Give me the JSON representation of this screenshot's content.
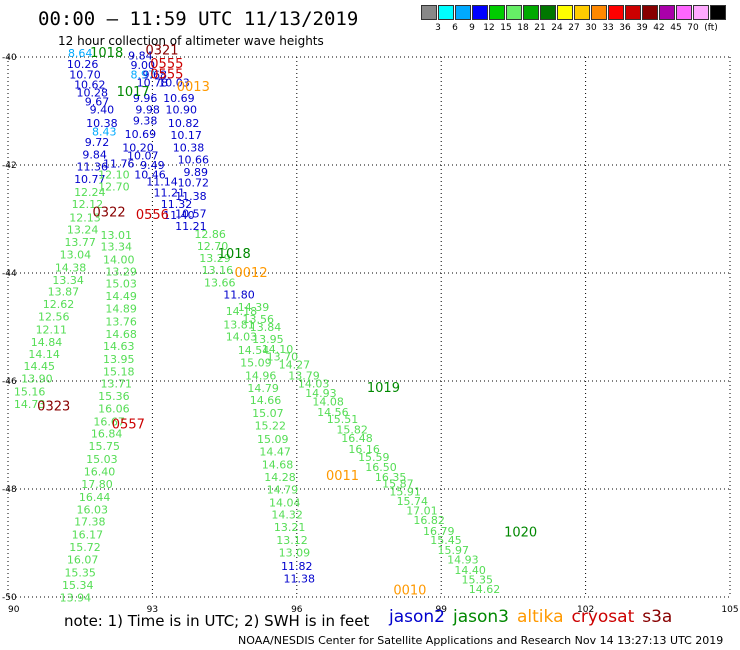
{
  "header": {
    "title": "00:00 – 11:59 UTC 11/13/2019",
    "subtitle": "12 hour collection of altimeter wave heights"
  },
  "scale": {
    "unit_label": "(ft)",
    "colors": [
      "#888888",
      "#00ffff",
      "#00aaff",
      "#0000ff",
      "#00cc00",
      "#66ee66",
      "#00aa00",
      "#007700",
      "#ffff00",
      "#ffcc00",
      "#ff8800",
      "#ff0000",
      "#cc0000",
      "#880000",
      "#aa00aa",
      "#ff66ff",
      "#ffaaff",
      "#000000"
    ],
    "labels": [
      "3",
      "6",
      "9",
      "12",
      "15",
      "18",
      "21",
      "24",
      "27",
      "30",
      "33",
      "36",
      "39",
      "42",
      "45",
      "70"
    ]
  },
  "axes": {
    "x_ticks": [
      "90",
      "93",
      "96",
      "99",
      "102",
      "105"
    ],
    "y_ticks": [
      "-40",
      "-42",
      "-44",
      "-46",
      "-48",
      "-50"
    ]
  },
  "footer": {
    "note": "note: 1) Time is in UTC; 2) SWH is in feet",
    "credit": "NOAA/NESDIS Center for Satellite Applications and Research   Nov 14 13:27:13 UTC 2019",
    "satellites": [
      {
        "name": "jason2",
        "color": "#0000cc"
      },
      {
        "name": "jason3",
        "color": "#008800"
      },
      {
        "name": "altika",
        "color": "#ff9900"
      },
      {
        "name": "cryosat",
        "color": "#cc0000"
      },
      {
        "name": "s3a",
        "color": "#880000"
      }
    ]
  },
  "time_labels": [
    {
      "text": "0321",
      "color": "#880000",
      "lon": 93.2,
      "lat": -39.95
    },
    {
      "text": "0555",
      "color": "#cc0000",
      "lon": 93.3,
      "lat": -40.2
    },
    {
      "text": "0555",
      "color": "#cc0000",
      "lon": 93.3,
      "lat": -40.4
    },
    {
      "text": "0013",
      "color": "#ff9900",
      "lon": 93.85,
      "lat": -40.63
    },
    {
      "text": "1018",
      "color": "#008800",
      "lon": 92.05,
      "lat": -40.0
    },
    {
      "text": "1017",
      "color": "#008800",
      "lon": 92.6,
      "lat": -40.72
    },
    {
      "text": "0322",
      "color": "#880000",
      "lon": 92.1,
      "lat": -42.95
    },
    {
      "text": "0556",
      "color": "#cc0000",
      "lon": 93.0,
      "lat": -43.0
    },
    {
      "text": "1018",
      "color": "#008800",
      "lon": 94.7,
      "lat": -43.72
    },
    {
      "text": "0012",
      "color": "#ff9900",
      "lon": 95.05,
      "lat": -44.07
    },
    {
      "text": "0323",
      "color": "#880000",
      "lon": 90.95,
      "lat": -46.55
    },
    {
      "text": "0557",
      "color": "#cc0000",
      "lon": 92.5,
      "lat": -46.88
    },
    {
      "text": "1019",
      "color": "#008800",
      "lon": 97.8,
      "lat": -46.2
    },
    {
      "text": "0011",
      "color": "#ff9900",
      "lon": 96.95,
      "lat": -47.83
    },
    {
      "text": "1020",
      "color": "#008800",
      "lon": 100.65,
      "lat": -48.88
    },
    {
      "text": "0010",
      "color": "#ff9900",
      "lon": 98.35,
      "lat": -49.95
    }
  ],
  "values": [
    {
      "text": "8.64",
      "color": "#00aaff",
      "lon": 91.5,
      "lat": -40.0
    },
    {
      "text": "10.26",
      "color": "#0000cc",
      "lon": 91.55,
      "lat": -40.2
    },
    {
      "text": "10.70",
      "color": "#0000cc",
      "lon": 91.6,
      "lat": -40.4
    },
    {
      "text": "10.62",
      "color": "#0000cc",
      "lon": 91.7,
      "lat": -40.58
    },
    {
      "text": "10.28",
      "color": "#0000cc",
      "lon": 91.75,
      "lat": -40.73
    },
    {
      "text": "9.67",
      "color": "#0000cc",
      "lon": 91.85,
      "lat": -40.9
    },
    {
      "text": "9.40",
      "color": "#0000cc",
      "lon": 91.95,
      "lat": -41.05
    },
    {
      "text": "10.38",
      "color": "#0000cc",
      "lon": 91.95,
      "lat": -41.3
    },
    {
      "text": "8.43",
      "color": "#00aaff",
      "lon": 92.0,
      "lat": -41.45
    },
    {
      "text": "9.72",
      "color": "#0000cc",
      "lon": 91.85,
      "lat": -41.65
    },
    {
      "text": "9.84",
      "color": "#0000cc",
      "lon": 91.8,
      "lat": -41.88
    },
    {
      "text": "11.36",
      "color": "#0000cc",
      "lon": 91.75,
      "lat": -42.1
    },
    {
      "text": "10.77",
      "color": "#0000cc",
      "lon": 91.7,
      "lat": -42.33
    },
    {
      "text": "12.24",
      "color": "#55dd55",
      "lon": 91.7,
      "lat": -42.57
    },
    {
      "text": "12.12",
      "color": "#55dd55",
      "lon": 91.65,
      "lat": -42.8
    },
    {
      "text": "12.13",
      "color": "#55dd55",
      "lon": 91.6,
      "lat": -43.05
    },
    {
      "text": "13.24",
      "color": "#55dd55",
      "lon": 91.55,
      "lat": -43.27
    },
    {
      "text": "13.77",
      "color": "#55dd55",
      "lon": 91.5,
      "lat": -43.5
    },
    {
      "text": "13.04",
      "color": "#55dd55",
      "lon": 91.4,
      "lat": -43.73
    },
    {
      "text": "14.38",
      "color": "#55dd55",
      "lon": 91.3,
      "lat": -43.97
    },
    {
      "text": "13.34",
      "color": "#55dd55",
      "lon": 91.25,
      "lat": -44.2
    },
    {
      "text": "13.87",
      "color": "#55dd55",
      "lon": 91.15,
      "lat": -44.42
    },
    {
      "text": "12.62",
      "color": "#55dd55",
      "lon": 91.05,
      "lat": -44.65
    },
    {
      "text": "12.56",
      "color": "#55dd55",
      "lon": 90.95,
      "lat": -44.88
    },
    {
      "text": "12.11",
      "color": "#55dd55",
      "lon": 90.9,
      "lat": -45.12
    },
    {
      "text": "14.84",
      "color": "#55dd55",
      "lon": 90.8,
      "lat": -45.35
    },
    {
      "text": "14.14",
      "color": "#55dd55",
      "lon": 90.75,
      "lat": -45.57
    },
    {
      "text": "14.45",
      "color": "#55dd55",
      "lon": 90.65,
      "lat": -45.8
    },
    {
      "text": "13.90",
      "color": "#55dd55",
      "lon": 90.6,
      "lat": -46.03
    },
    {
      "text": "15.16",
      "color": "#55dd55",
      "lon": 90.45,
      "lat": -46.27
    },
    {
      "text": "14.73",
      "color": "#55dd55",
      "lon": 90.45,
      "lat": -46.5
    },
    {
      "text": "9.84",
      "color": "#0000cc",
      "lon": 92.75,
      "lat": -40.05
    },
    {
      "text": "9.00",
      "color": "#0000cc",
      "lon": 92.8,
      "lat": -40.22
    },
    {
      "text": "8.97",
      "color": "#00aaff",
      "lon": 92.8,
      "lat": -40.4
    },
    {
      "text": "9.68",
      "color": "#0000cc",
      "lon": 93.05,
      "lat": -40.4
    },
    {
      "text": "10.78",
      "color": "#0000cc",
      "lon": 93.0,
      "lat": -40.55
    },
    {
      "text": "10.03",
      "color": "#0000cc",
      "lon": 93.45,
      "lat": -40.55
    },
    {
      "text": "9.96",
      "color": "#0000cc",
      "lon": 92.85,
      "lat": -40.83
    },
    {
      "text": "10.69",
      "color": "#0000cc",
      "lon": 93.55,
      "lat": -40.83
    },
    {
      "text": "9.98",
      "color": "#0000cc",
      "lon": 92.9,
      "lat": -41.05
    },
    {
      "text": "10.90",
      "color": "#0000cc",
      "lon": 93.6,
      "lat": -41.05
    },
    {
      "text": "9.38",
      "color": "#0000cc",
      "lon": 92.85,
      "lat": -41.25
    },
    {
      "text": "10.82",
      "color": "#0000cc",
      "lon": 93.65,
      "lat": -41.3
    },
    {
      "text": "10.69",
      "color": "#0000cc",
      "lon": 92.75,
      "lat": -41.5
    },
    {
      "text": "10.17",
      "color": "#0000cc",
      "lon": 93.7,
      "lat": -41.52
    },
    {
      "text": "10.20",
      "color": "#0000cc",
      "lon": 92.7,
      "lat": -41.75
    },
    {
      "text": "10.38",
      "color": "#0000cc",
      "lon": 93.75,
      "lat": -41.75
    },
    {
      "text": "10.07",
      "color": "#0000cc",
      "lon": 92.8,
      "lat": -41.9
    },
    {
      "text": "10.66",
      "color": "#0000cc",
      "lon": 93.85,
      "lat": -41.97
    },
    {
      "text": "11.76",
      "color": "#0000cc",
      "lon": 92.3,
      "lat": -42.05
    },
    {
      "text": "9.49",
      "color": "#0000cc",
      "lon": 93.0,
      "lat": -42.07
    },
    {
      "text": "9.89",
      "color": "#0000cc",
      "lon": 93.9,
      "lat": -42.2
    },
    {
      "text": "12.10",
      "color": "#55dd55",
      "lon": 92.2,
      "lat": -42.25
    },
    {
      "text": "10.46",
      "color": "#0000cc",
      "lon": 92.95,
      "lat": -42.25
    },
    {
      "text": "10.72",
      "color": "#0000cc",
      "lon": 93.85,
      "lat": -42.4
    },
    {
      "text": "12.70",
      "color": "#55dd55",
      "lon": 92.2,
      "lat": -42.47
    },
    {
      "text": "11.14",
      "color": "#0000cc",
      "lon": 93.2,
      "lat": -42.38
    },
    {
      "text": "11.21",
      "color": "#0000cc",
      "lon": 93.35,
      "lat": -42.58
    },
    {
      "text": "11.38",
      "color": "#0000cc",
      "lon": 93.8,
      "lat": -42.65
    },
    {
      "text": "11.32",
      "color": "#0000cc",
      "lon": 93.5,
      "lat": -42.8
    },
    {
      "text": "11.40",
      "color": "#0000cc",
      "lon": 93.55,
      "lat": -43.0
    },
    {
      "text": "10.57",
      "color": "#0000cc",
      "lon": 93.8,
      "lat": -42.97
    },
    {
      "text": "11.21",
      "color": "#0000cc",
      "lon": 93.8,
      "lat": -43.2
    },
    {
      "text": "13.01",
      "color": "#55dd55",
      "lon": 92.25,
      "lat": -43.37
    },
    {
      "text": "13.34",
      "color": "#55dd55",
      "lon": 92.25,
      "lat": -43.58
    },
    {
      "text": "14.00",
      "color": "#55dd55",
      "lon": 92.3,
      "lat": -43.82
    },
    {
      "text": "13.29",
      "color": "#55dd55",
      "lon": 92.35,
      "lat": -44.05
    },
    {
      "text": "15.03",
      "color": "#55dd55",
      "lon": 92.35,
      "lat": -44.27
    },
    {
      "text": "14.49",
      "color": "#55dd55",
      "lon": 92.35,
      "lat": -44.5
    },
    {
      "text": "14.89",
      "color": "#55dd55",
      "lon": 92.35,
      "lat": -44.73
    },
    {
      "text": "13.76",
      "color": "#55dd55",
      "lon": 92.35,
      "lat": -44.97
    },
    {
      "text": "14.68",
      "color": "#55dd55",
      "lon": 92.35,
      "lat": -45.2
    },
    {
      "text": "14.63",
      "color": "#55dd55",
      "lon": 92.3,
      "lat": -45.43
    },
    {
      "text": "13.95",
      "color": "#55dd55",
      "lon": 92.3,
      "lat": -45.67
    },
    {
      "text": "15.18",
      "color": "#55dd55",
      "lon": 92.3,
      "lat": -45.9
    },
    {
      "text": "13.71",
      "color": "#55dd55",
      "lon": 92.25,
      "lat": -46.12
    },
    {
      "text": "15.36",
      "color": "#55dd55",
      "lon": 92.2,
      "lat": -46.35
    },
    {
      "text": "16.06",
      "color": "#55dd55",
      "lon": 92.2,
      "lat": -46.58
    },
    {
      "text": "16.67",
      "color": "#55dd55",
      "lon": 92.1,
      "lat": -46.82
    },
    {
      "text": "16.84",
      "color": "#55dd55",
      "lon": 92.05,
      "lat": -47.05
    },
    {
      "text": "15.75",
      "color": "#55dd55",
      "lon": 92.0,
      "lat": -47.28
    },
    {
      "text": "15.03",
      "color": "#55dd55",
      "lon": 91.95,
      "lat": -47.52
    },
    {
      "text": "16.40",
      "color": "#55dd55",
      "lon": 91.9,
      "lat": -47.75
    },
    {
      "text": "17.80",
      "color": "#55dd55",
      "lon": 91.85,
      "lat": -47.98
    },
    {
      "text": "16.44",
      "color": "#55dd55",
      "lon": 91.8,
      "lat": -48.22
    },
    {
      "text": "16.03",
      "color": "#55dd55",
      "lon": 91.75,
      "lat": -48.45
    },
    {
      "text": "17.38",
      "color": "#55dd55",
      "lon": 91.7,
      "lat": -48.68
    },
    {
      "text": "16.17",
      "color": "#55dd55",
      "lon": 91.65,
      "lat": -48.92
    },
    {
      "text": "15.72",
      "color": "#55dd55",
      "lon": 91.6,
      "lat": -49.15
    },
    {
      "text": "16.07",
      "color": "#55dd55",
      "lon": 91.55,
      "lat": -49.38
    },
    {
      "text": "15.35",
      "color": "#55dd55",
      "lon": 91.5,
      "lat": -49.62
    },
    {
      "text": "15.34",
      "color": "#55dd55",
      "lon": 91.45,
      "lat": -49.85
    },
    {
      "text": "13.94",
      "color": "#55dd55",
      "lon": 91.4,
      "lat": -50.08
    },
    {
      "text": "12.86",
      "color": "#55dd55",
      "lon": 94.2,
      "lat": -43.35
    },
    {
      "text": "12.70",
      "color": "#55dd55",
      "lon": 94.25,
      "lat": -43.57
    },
    {
      "text": "13.29",
      "color": "#55dd55",
      "lon": 94.3,
      "lat": -43.8
    },
    {
      "text": "13.16",
      "color": "#55dd55",
      "lon": 94.35,
      "lat": -44.02
    },
    {
      "text": "13.66",
      "color": "#55dd55",
      "lon": 94.4,
      "lat": -44.25
    },
    {
      "text": "11.80",
      "color": "#0000cc",
      "lon": 94.8,
      "lat": -44.47
    },
    {
      "text": "14.39",
      "color": "#55dd55",
      "lon": 95.1,
      "lat": -44.7
    },
    {
      "text": "14.18",
      "color": "#55dd55",
      "lon": 94.85,
      "lat": -44.78
    },
    {
      "text": "13.56",
      "color": "#55dd55",
      "lon": 95.2,
      "lat": -44.93
    },
    {
      "text": "13.81",
      "color": "#55dd55",
      "lon": 94.8,
      "lat": -45.03
    },
    {
      "text": "13.84",
      "color": "#55dd55",
      "lon": 95.35,
      "lat": -45.07
    },
    {
      "text": "14.03",
      "color": "#55dd55",
      "lon": 94.85,
      "lat": -45.25
    },
    {
      "text": "13.95",
      "color": "#55dd55",
      "lon": 95.4,
      "lat": -45.3
    },
    {
      "text": "14.10",
      "color": "#55dd55",
      "lon": 95.6,
      "lat": -45.48
    },
    {
      "text": "14.54",
      "color": "#55dd55",
      "lon": 95.1,
      "lat": -45.5
    },
    {
      "text": "13.70",
      "color": "#55dd55",
      "lon": 95.7,
      "lat": -45.62
    },
    {
      "text": "15.09",
      "color": "#55dd55",
      "lon": 95.15,
      "lat": -45.73
    },
    {
      "text": "14.27",
      "color": "#55dd55",
      "lon": 95.95,
      "lat": -45.77
    },
    {
      "text": "13.79",
      "color": "#55dd55",
      "lon": 96.15,
      "lat": -45.97
    },
    {
      "text": "14.96",
      "color": "#55dd55",
      "lon": 95.25,
      "lat": -45.97
    },
    {
      "text": "14.03",
      "color": "#55dd55",
      "lon": 96.35,
      "lat": -46.12
    },
    {
      "text": "14.79",
      "color": "#55dd55",
      "lon": 95.3,
      "lat": -46.2
    },
    {
      "text": "14.93",
      "color": "#55dd55",
      "lon": 96.5,
      "lat": -46.3
    },
    {
      "text": "14.66",
      "color": "#55dd55",
      "lon": 95.35,
      "lat": -46.43
    },
    {
      "text": "14.08",
      "color": "#55dd55",
      "lon": 96.65,
      "lat": -46.45
    },
    {
      "text": "14.56",
      "color": "#55dd55",
      "lon": 96.75,
      "lat": -46.65
    },
    {
      "text": "15.07",
      "color": "#55dd55",
      "lon": 95.4,
      "lat": -46.67
    },
    {
      "text": "15.51",
      "color": "#55dd55",
      "lon": 96.95,
      "lat": -46.78
    },
    {
      "text": "15.22",
      "color": "#55dd55",
      "lon": 95.45,
      "lat": -46.9
    },
    {
      "text": "15.82",
      "color": "#55dd55",
      "lon": 97.15,
      "lat": -46.97
    },
    {
      "text": "15.09",
      "color": "#55dd55",
      "lon": 95.5,
      "lat": -47.15
    },
    {
      "text": "16.48",
      "color": "#55dd55",
      "lon": 97.25,
      "lat": -47.13
    },
    {
      "text": "16.16",
      "color": "#55dd55",
      "lon": 97.4,
      "lat": -47.33
    },
    {
      "text": "14.47",
      "color": "#55dd55",
      "lon": 95.55,
      "lat": -47.38
    },
    {
      "text": "15.59",
      "color": "#55dd55",
      "lon": 97.6,
      "lat": -47.48
    },
    {
      "text": "14.68",
      "color": "#55dd55",
      "lon": 95.6,
      "lat": -47.62
    },
    {
      "text": "16.50",
      "color": "#55dd55",
      "lon": 97.75,
      "lat": -47.67
    },
    {
      "text": "16.35",
      "color": "#55dd55",
      "lon": 97.95,
      "lat": -47.85
    },
    {
      "text": "14.28",
      "color": "#55dd55",
      "lon": 95.65,
      "lat": -47.85
    },
    {
      "text": "15.87",
      "color": "#55dd55",
      "lon": 98.1,
      "lat": -47.97
    },
    {
      "text": "15.91",
      "color": "#55dd55",
      "lon": 98.25,
      "lat": -48.12
    },
    {
      "text": "14.79",
      "color": "#55dd55",
      "lon": 95.7,
      "lat": -48.08
    },
    {
      "text": "15.74",
      "color": "#55dd55",
      "lon": 98.4,
      "lat": -48.3
    },
    {
      "text": "14.04",
      "color": "#55dd55",
      "lon": 95.75,
      "lat": -48.32
    },
    {
      "text": "17.01",
      "color": "#55dd55",
      "lon": 98.6,
      "lat": -48.47
    },
    {
      "text": "14.32",
      "color": "#55dd55",
      "lon": 95.8,
      "lat": -48.55
    },
    {
      "text": "16.82",
      "color": "#55dd55",
      "lon": 98.75,
      "lat": -48.65
    },
    {
      "text": "13.21",
      "color": "#55dd55",
      "lon": 95.85,
      "lat": -48.78
    },
    {
      "text": "16.79",
      "color": "#55dd55",
      "lon": 98.95,
      "lat": -48.85
    },
    {
      "text": "15.45",
      "color": "#55dd55",
      "lon": 99.1,
      "lat": -49.02
    },
    {
      "text": "13.12",
      "color": "#55dd55",
      "lon": 95.9,
      "lat": -49.02
    },
    {
      "text": "15.97",
      "color": "#55dd55",
      "lon": 99.25,
      "lat": -49.2
    },
    {
      "text": "13.09",
      "color": "#55dd55",
      "lon": 95.95,
      "lat": -49.25
    },
    {
      "text": "14.93",
      "color": "#55dd55",
      "lon": 99.45,
      "lat": -49.38
    },
    {
      "text": "14.40",
      "color": "#55dd55",
      "lon": 99.6,
      "lat": -49.57
    },
    {
      "text": "11.82",
      "color": "#0000cc",
      "lon": 96.0,
      "lat": -49.5
    },
    {
      "text": "15.35",
      "color": "#55dd55",
      "lon": 99.75,
      "lat": -49.75
    },
    {
      "text": "11.38",
      "color": "#0000cc",
      "lon": 96.05,
      "lat": -49.73
    },
    {
      "text": "14.62",
      "color": "#55dd55",
      "lon": 99.9,
      "lat": -49.93
    }
  ]
}
